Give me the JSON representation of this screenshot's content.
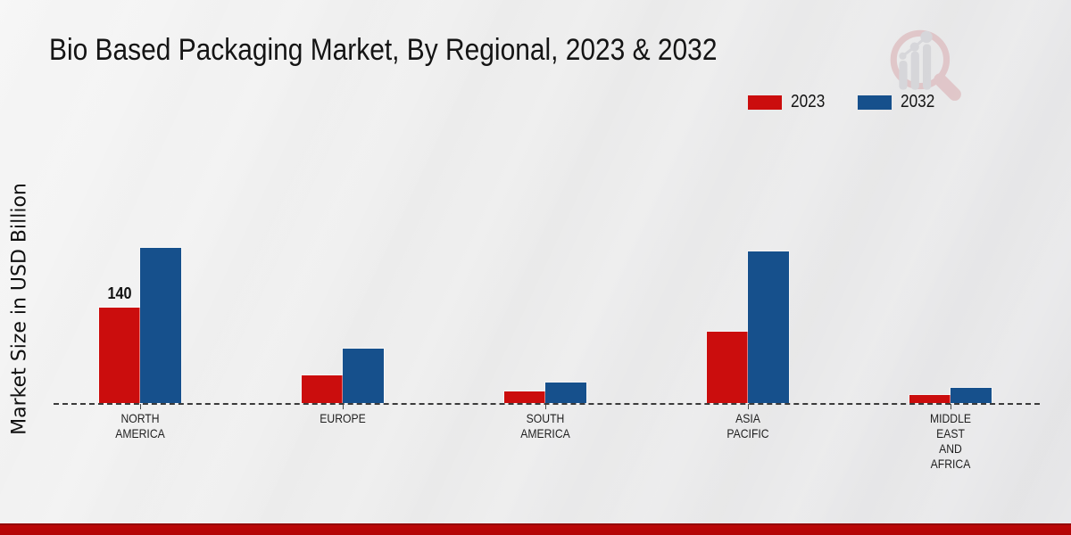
{
  "page": {
    "title": "Bio Based Packaging Market, By Regional, 2023 & 2032"
  },
  "chart_data": {
    "type": "bar",
    "title": "Bio Based Packaging Market, By Regional, 2023 & 2032",
    "xlabel": "",
    "ylabel": "Market Size in USD Billion",
    "categories": [
      "NORTH\nAMERICA",
      "EUROPE",
      "SOUTH\nAMERICA",
      "ASIA\nPACIFIC",
      "MIDDLE\nEAST\nAND\nAFRICA"
    ],
    "series": [
      {
        "name": "2023",
        "color": "#cb0d0d",
        "values": [
          140,
          40,
          17,
          105,
          12
        ]
      },
      {
        "name": "2032",
        "color": "#16508c",
        "values": [
          228,
          80,
          30,
          222,
          22
        ]
      }
    ],
    "data_labels": [
      {
        "series": 0,
        "category": 0,
        "text": "140"
      }
    ],
    "baseline_value": 0,
    "ylim": [
      0,
      240
    ],
    "grid": "dashed zero baseline only, no y ticks",
    "legend_position": "top-right",
    "accent_colors": {
      "bottom_bar": "#b30606",
      "axis_dash": "#3b3b3b"
    },
    "watermark": "magnifier-growth-chart-logo"
  }
}
